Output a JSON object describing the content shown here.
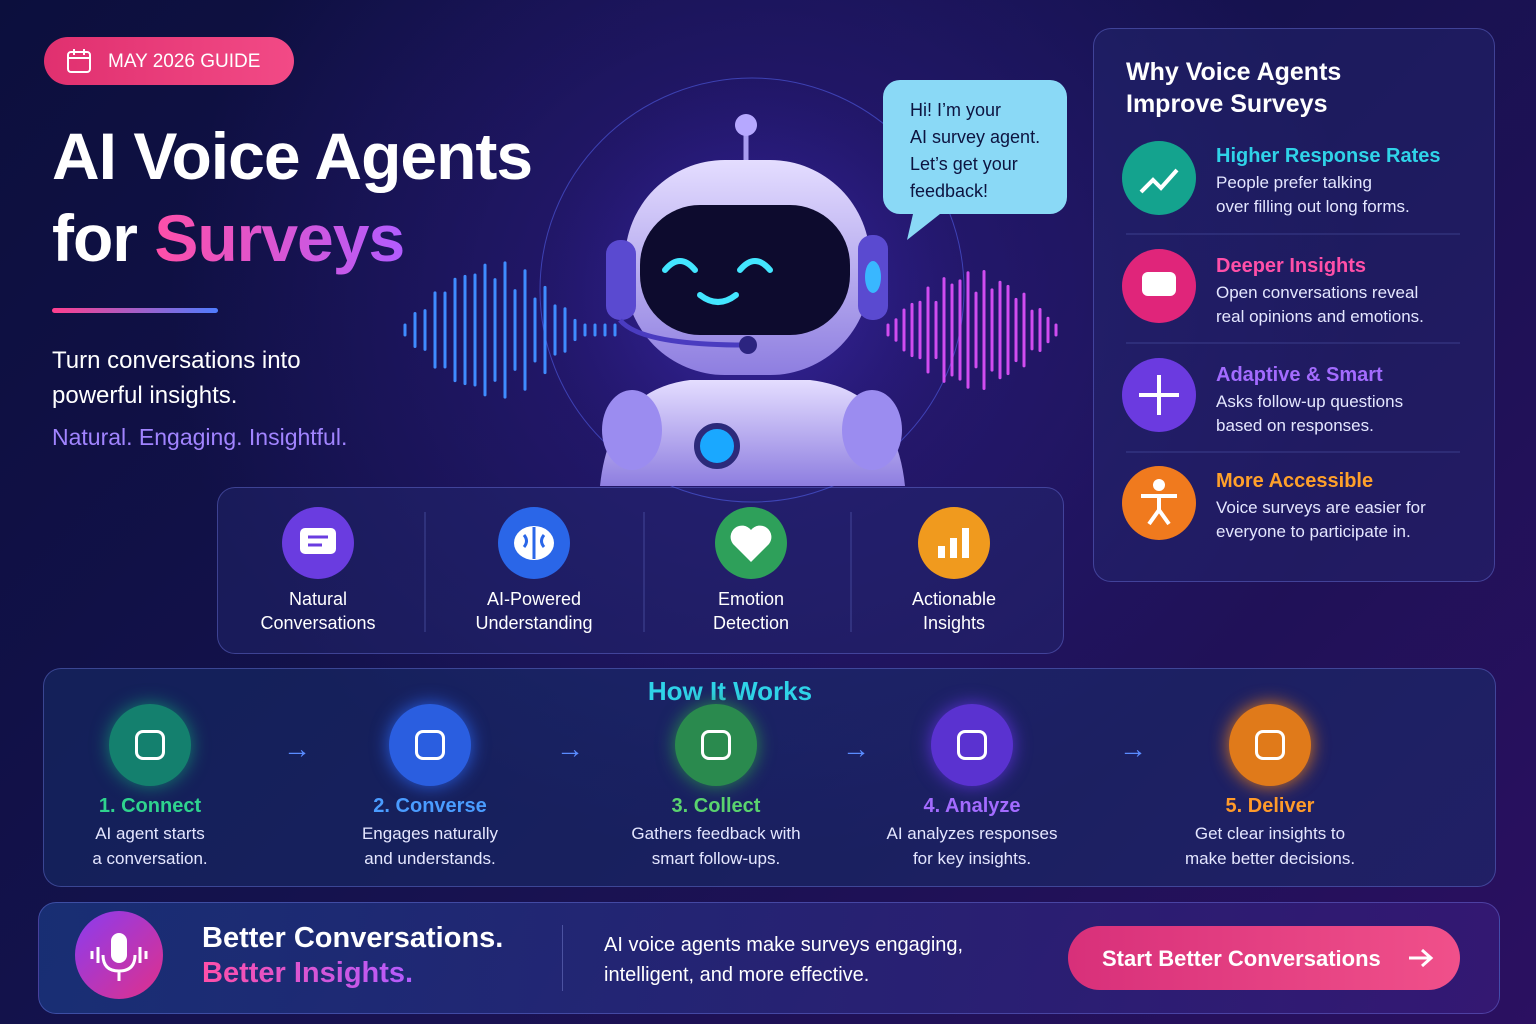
{
  "badge": "MAY 2026 GUIDE",
  "hero": {
    "title_line1": "AI Voice Agents",
    "title_prefix": "for",
    "title_highlight": "Surveys",
    "tagline": [
      "Turn conversations into",
      "powerful insights."
    ],
    "motto": "Natural. Engaging. Insightful."
  },
  "speech_bubble": [
    "Hi! I’m your",
    "AI survey agent.",
    "Let’s get your",
    "feedback!"
  ],
  "features": [
    {
      "label": [
        "Natural",
        "Conversations"
      ]
    },
    {
      "label": [
        "AI-Powered",
        "Understanding"
      ]
    },
    {
      "label": [
        "Emotion",
        "Detection"
      ]
    },
    {
      "label": [
        "Actionable",
        "Insights"
      ]
    }
  ],
  "why": {
    "title": [
      "Why Voice Agents",
      "Improve Surveys"
    ],
    "items": [
      {
        "heading": "Higher Response Rates",
        "text": [
          "People prefer talking",
          "over filling out long forms."
        ]
      },
      {
        "heading": "Deeper Insights",
        "text": [
          "Open conversations reveal",
          "real opinions and emotions."
        ]
      },
      {
        "heading": "Adaptive & Smart",
        "text": [
          "Asks follow-up questions",
          "based on responses."
        ]
      },
      {
        "heading": "More Accessible",
        "text": [
          "Voice surveys are easier for",
          "everyone to participate in."
        ]
      }
    ]
  },
  "how": {
    "title": "How It Works",
    "steps": [
      {
        "heading": "1. Connect",
        "text": [
          "AI agent starts",
          "a conversation."
        ]
      },
      {
        "heading": "2. Converse",
        "text": [
          "Engages naturally",
          "and understands."
        ]
      },
      {
        "heading": "3. Collect",
        "text": [
          "Gathers feedback with",
          "smart follow-ups."
        ]
      },
      {
        "heading": "4. Analyze",
        "text": [
          "AI analyzes responses",
          "for key insights."
        ]
      },
      {
        "heading": "5. Deliver",
        "text": [
          "Get clear insights to",
          "make better decisions."
        ]
      }
    ]
  },
  "footer": {
    "headline": "Better Conversations.",
    "highlight": "Better Insights.",
    "text": [
      "AI voice agents make surveys engaging,",
      "intelligent, and more effective."
    ],
    "button": "Start Better Conversations"
  }
}
